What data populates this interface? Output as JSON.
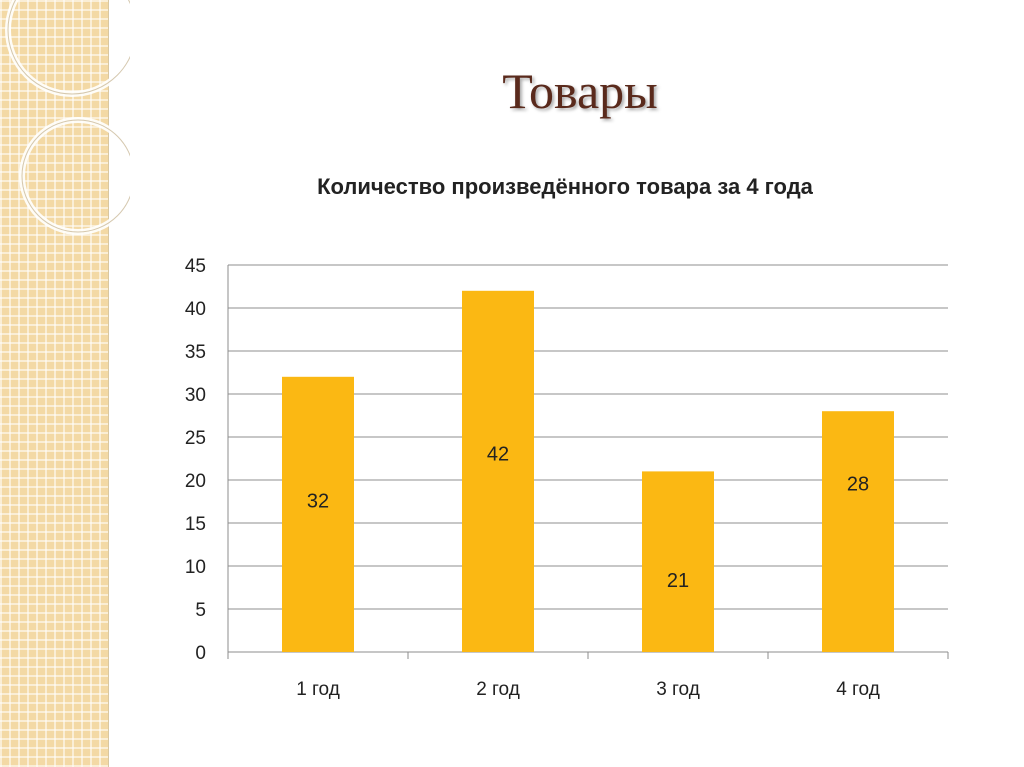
{
  "slide": {
    "title": "Товары"
  },
  "chart_data": {
    "type": "bar",
    "title": "Количество произведённого товара  за 4 года",
    "categories": [
      "1 год",
      "2 год",
      "3 год",
      "4 год"
    ],
    "series": [
      {
        "values": [
          32,
          42,
          21,
          28
        ]
      }
    ],
    "ylim": [
      0,
      45
    ],
    "ytick_labels": [
      "0",
      "5",
      "10",
      "15",
      "20",
      "25",
      "30",
      "35",
      "40",
      "45"
    ],
    "data_labels": [
      "32",
      "42",
      "21",
      "28"
    ],
    "grid": true,
    "legend": "none",
    "bar_color": "#fbb813"
  },
  "theme": {
    "panel_color": "#f3d9a5",
    "title_color": "#5a2a1c"
  }
}
